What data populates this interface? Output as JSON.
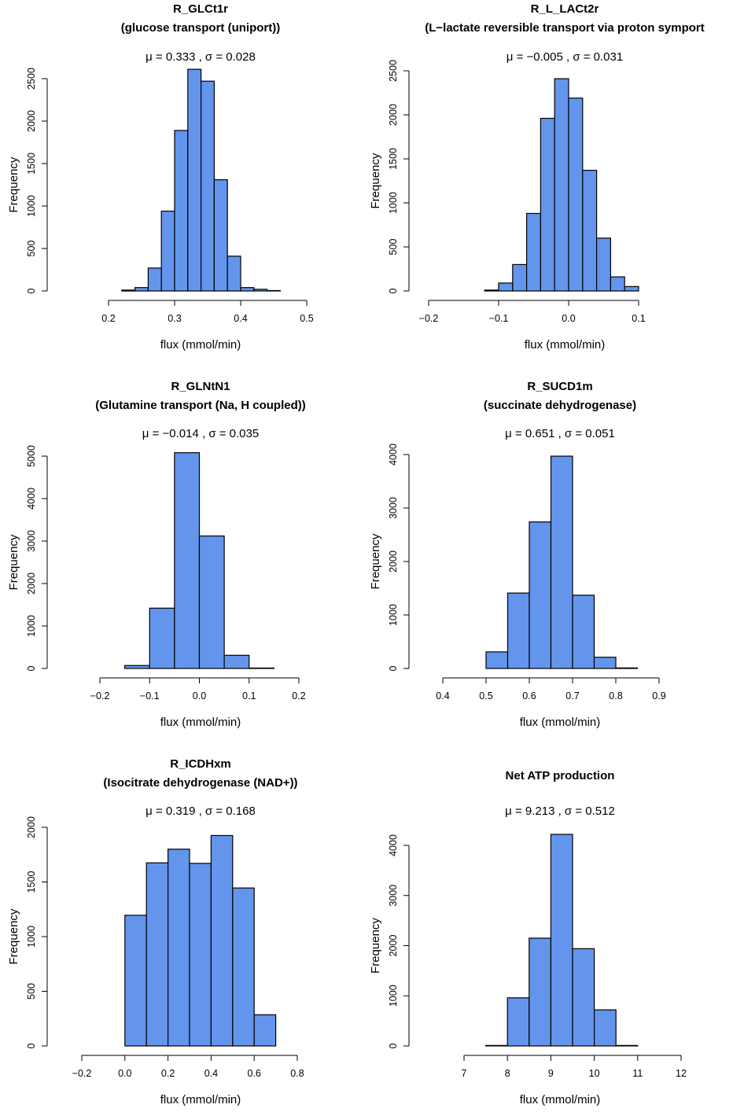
{
  "chart_data": [
    {
      "type": "bar",
      "title": "R_GLCt1r",
      "subtitle": "(glucose transport (uniport))",
      "stats": {
        "mean_label": "μ =",
        "mean": "0.333",
        "sep": ",",
        "sd_label": "σ =",
        "sd": "0.028"
      },
      "xlabel": "flux (mmol/min)",
      "ylabel": "Frequency",
      "xlim": [
        0.2,
        0.5
      ],
      "ylim": [
        0,
        2500
      ],
      "xticks": [
        "0.2",
        "0.3",
        "0.4",
        "0.5"
      ],
      "yticks": [
        "0",
        "500",
        "1000",
        "1500",
        "2000",
        "2500"
      ],
      "bin_edges": [
        0.22,
        0.24,
        0.26,
        0.28,
        0.3,
        0.32,
        0.34,
        0.36,
        0.38,
        0.4,
        0.42,
        0.44,
        0.46
      ],
      "values": [
        10,
        40,
        270,
        940,
        1890,
        2610,
        2470,
        1310,
        410,
        40,
        20,
        5
      ]
    },
    {
      "type": "bar",
      "title": "R_L_LACt2r",
      "subtitle": "(L−lactate reversible transport via proton symport",
      "stats": {
        "mean_label": "μ =",
        "mean": "−0.005",
        "sep": ",",
        "sd_label": "σ =",
        "sd": "0.031"
      },
      "xlabel": "flux (mmol/min)",
      "ylabel": "Frequency",
      "xlim": [
        -0.2,
        0.1
      ],
      "ylim": [
        0,
        2500
      ],
      "xticks": [
        "−0.2",
        "−0.1",
        "0.0",
        "0.1"
      ],
      "yticks": [
        "0",
        "500",
        "1000",
        "1500",
        "2000",
        "2500"
      ],
      "bin_edges": [
        -0.12,
        -0.1,
        -0.08,
        -0.06,
        -0.04,
        -0.02,
        0.0,
        0.02,
        0.04,
        0.06,
        0.08,
        0.1
      ],
      "values": [
        10,
        90,
        300,
        880,
        1960,
        2410,
        2190,
        1370,
        600,
        160,
        50
      ]
    },
    {
      "type": "bar",
      "title": "R_GLNtN1",
      "subtitle": "(Glutamine transport (Na, H coupled))",
      "stats": {
        "mean_label": "μ =",
        "mean": "−0.014",
        "sep": ",",
        "sd_label": "σ =",
        "sd": "0.035"
      },
      "xlabel": "flux (mmol/min)",
      "ylabel": "Frequency",
      "xlim": [
        -0.2,
        0.2
      ],
      "ylim": [
        0,
        5000
      ],
      "xticks": [
        "−0.2",
        "−0.1",
        "0.0",
        "0.1",
        "0.2"
      ],
      "yticks": [
        "0",
        "1000",
        "2000",
        "3000",
        "4000",
        "5000"
      ],
      "bin_edges": [
        -0.15,
        -0.1,
        -0.05,
        0.0,
        0.05,
        0.1,
        0.15
      ],
      "values": [
        70,
        1420,
        5080,
        3120,
        310,
        10
      ]
    },
    {
      "type": "bar",
      "title": "R_SUCD1m",
      "subtitle": "(succinate dehydrogenase)",
      "stats": {
        "mean_label": "μ =",
        "mean": "0.651",
        "sep": ",",
        "sd_label": "σ =",
        "sd": "0.051"
      },
      "xlabel": "flux (mmol/min)",
      "ylabel": "Frequency",
      "xlim": [
        0.4,
        0.9
      ],
      "ylim": [
        0,
        4000
      ],
      "xticks": [
        "0.4",
        "0.5",
        "0.6",
        "0.7",
        "0.8",
        "0.9"
      ],
      "yticks": [
        "0",
        "1000",
        "2000",
        "3000",
        "4000"
      ],
      "bin_edges": [
        0.5,
        0.55,
        0.6,
        0.65,
        0.7,
        0.75,
        0.8,
        0.85
      ],
      "values": [
        310,
        1410,
        2740,
        3970,
        1370,
        210,
        10
      ]
    },
    {
      "type": "bar",
      "title": "R_ICDHxm",
      "subtitle": "(Isocitrate dehydrogenase (NAD+))",
      "stats": {
        "mean_label": "μ =",
        "mean": "0.319",
        "sep": ",",
        "sd_label": "σ =",
        "sd": "0.168"
      },
      "xlabel": "flux (mmol/min)",
      "ylabel": "Frequency",
      "xlim": [
        -0.2,
        0.8
      ],
      "ylim": [
        0,
        2000
      ],
      "xticks": [
        "−0.2",
        "0.0",
        "0.2",
        "0.4",
        "0.6",
        "0.8"
      ],
      "yticks": [
        "0",
        "500",
        "1000",
        "1500",
        "2000"
      ],
      "bin_edges": [
        0.0,
        0.1,
        0.2,
        0.3,
        0.4,
        0.5,
        0.6,
        0.7
      ],
      "values": [
        1195,
        1675,
        1800,
        1670,
        1925,
        1445,
        285
      ]
    },
    {
      "type": "bar",
      "title": "Net ATP production",
      "subtitle": "",
      "stats": {
        "mean_label": "μ =",
        "mean": "9.213",
        "sep": ",",
        "sd_label": "σ =",
        "sd": "0.512"
      },
      "xlabel": "flux (mmol/min)",
      "ylabel": "Frequency",
      "xlim": [
        7,
        12
      ],
      "ylim": [
        0,
        4000
      ],
      "xticks": [
        "7",
        "8",
        "9",
        "10",
        "11",
        "12"
      ],
      "yticks": [
        "0",
        "1000",
        "2000",
        "3000",
        "4000"
      ],
      "bin_edges": [
        7.5,
        8.0,
        8.5,
        9.0,
        9.5,
        10.0,
        10.5,
        11.0
      ],
      "values": [
        10,
        960,
        2150,
        4220,
        1940,
        720,
        10
      ]
    }
  ],
  "colors": {
    "bar_fill": "#6495ED",
    "bar_stroke": "#000000"
  }
}
